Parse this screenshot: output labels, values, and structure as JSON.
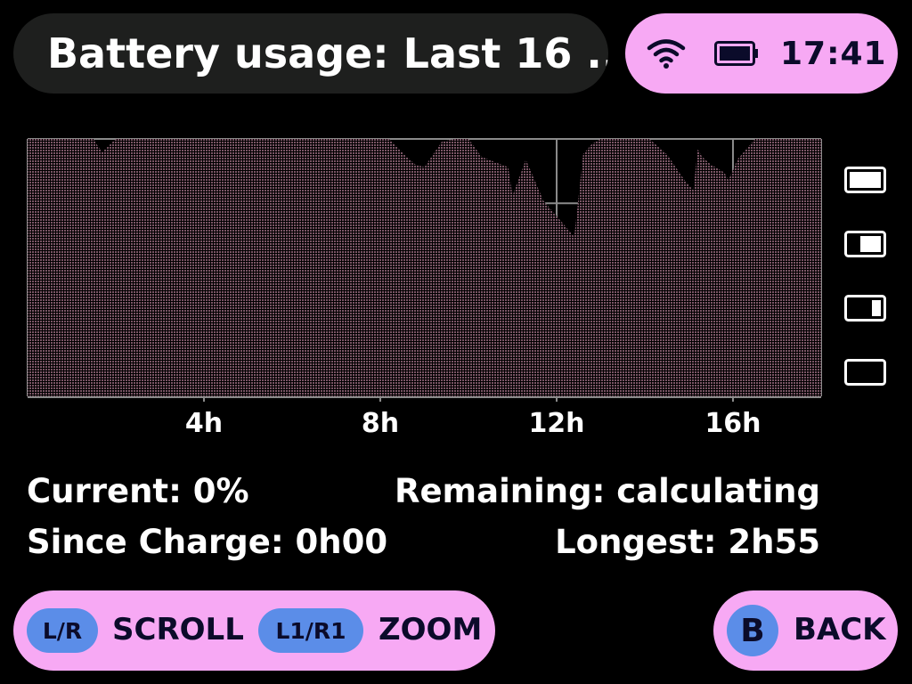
{
  "header": {
    "title": "Battery usage: Last 16 ...",
    "time": "17:41",
    "icons": [
      "wifi-icon",
      "battery-full-icon"
    ]
  },
  "chart_data": {
    "type": "area",
    "xlabel": "",
    "ylabel": "",
    "x_unit": "hours",
    "xlim": [
      0,
      18
    ],
    "ylim": [
      0,
      100
    ],
    "x_ticks": [
      {
        "value": 4,
        "label": "4h"
      },
      {
        "value": 8,
        "label": "8h"
      },
      {
        "value": 12,
        "label": "12h"
      },
      {
        "value": 16,
        "label": "16h"
      }
    ],
    "y_ticks_icons": [
      "battery-full-icon",
      "battery-high-icon",
      "battery-low-icon",
      "battery-empty-icon"
    ],
    "grid": true,
    "series": [
      {
        "x": [
          0,
          1.5,
          1.6,
          1.7,
          2.0,
          5.7,
          5.8,
          8.2,
          8.6,
          8.8,
          9.0,
          9.2,
          9.4,
          9.7,
          9.8,
          10.0,
          10.3,
          10.9,
          11.0,
          11.3,
          11.7,
          12.0,
          12.2,
          12.4,
          12.6,
          12.8,
          13.0,
          13.5,
          14.1,
          14.5,
          14.9,
          15.1,
          15.2,
          15.3,
          15.5,
          15.8,
          15.9,
          16.1,
          16.5,
          18.0
        ],
        "y": [
          100,
          100,
          97,
          95,
          100,
          100,
          100,
          100,
          93,
          90,
          89,
          94,
          99,
          100,
          100,
          100,
          93,
          89,
          78,
          92,
          76,
          70,
          66,
          62,
          94,
          98,
          100,
          100,
          100,
          94,
          84,
          80,
          96,
          93,
          90,
          87,
          84,
          92,
          100,
          100
        ]
      }
    ]
  },
  "stats": {
    "current": "Current: 0%",
    "since_charge": "Since Charge: 0h00",
    "remaining": "Remaining: calculating",
    "longest": "Longest: 2h55"
  },
  "footer": {
    "scroll_button": "L/R",
    "scroll_label": "SCROLL",
    "zoom_button": "L1/R1",
    "zoom_label": "ZOOM",
    "back_button": "B",
    "back_label": "BACK"
  },
  "colors": {
    "accent": "#f7a9f4",
    "button": "#5b8de8",
    "chart_fill": "#7a5565",
    "grid": "#8a8a8a"
  }
}
